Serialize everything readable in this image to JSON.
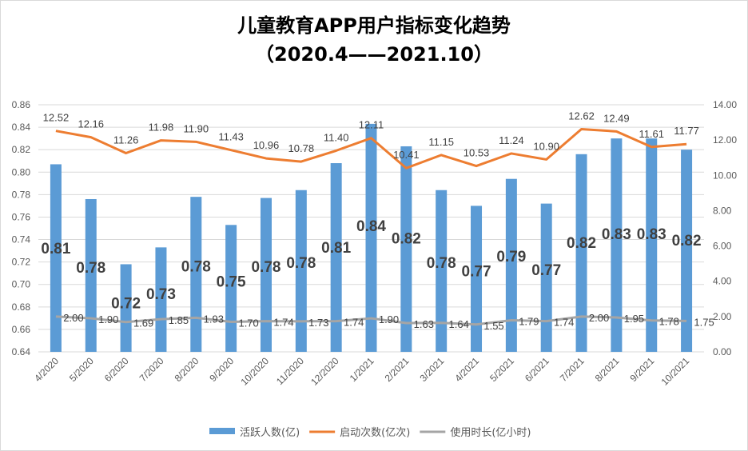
{
  "chart_data": {
    "type": "bar+line",
    "title": "儿童教育APP用户指标变化趋势",
    "subtitle": "（2020.4——2021.10）",
    "categories": [
      "4/2020",
      "5/2020",
      "6/2020",
      "7/2020",
      "8/2020",
      "9/2020",
      "10/2020",
      "11/2020",
      "12/2020",
      "1/2021",
      "2/2021",
      "3/2021",
      "4/2021",
      "5/2021",
      "6/2021",
      "7/2021",
      "8/2021",
      "9/2021",
      "10/2021"
    ],
    "series": [
      {
        "name": "活跃人数(亿)",
        "type": "bar",
        "axis": "left",
        "color": "#5B9BD5",
        "values": [
          0.807,
          0.776,
          0.718,
          0.733,
          0.778,
          0.753,
          0.777,
          0.784,
          0.808,
          0.843,
          0.823,
          0.784,
          0.77,
          0.794,
          0.772,
          0.816,
          0.83,
          0.83,
          0.82
        ],
        "labels": [
          "0.81",
          "0.78",
          "0.72",
          "0.73",
          "0.78",
          "0.75",
          "0.78",
          "0.78",
          "0.81",
          "0.84",
          "0.82",
          "0.78",
          "0.77",
          "0.79",
          "0.77",
          "0.82",
          "0.83",
          "0.83",
          "0.82"
        ]
      },
      {
        "name": "启动次数(亿次)",
        "type": "line",
        "axis": "right",
        "color": "#ED7D31",
        "values": [
          12.52,
          12.16,
          11.26,
          11.98,
          11.9,
          11.43,
          10.96,
          10.78,
          11.4,
          12.11,
          10.41,
          11.15,
          10.53,
          11.24,
          10.9,
          12.62,
          12.49,
          11.61,
          11.77
        ]
      },
      {
        "name": "使用时长(亿小时)",
        "type": "line",
        "axis": "right",
        "color": "#A5A5A5",
        "values": [
          2.0,
          1.9,
          1.69,
          1.85,
          1.93,
          1.7,
          1.74,
          1.73,
          1.74,
          1.9,
          1.63,
          1.64,
          1.55,
          1.79,
          1.74,
          2.0,
          1.95,
          1.78,
          1.75
        ]
      }
    ],
    "left_axis": {
      "ylim": [
        0.64,
        0.86
      ],
      "ticks": [
        "0.64",
        "0.66",
        "0.68",
        "0.70",
        "0.72",
        "0.74",
        "0.76",
        "0.78",
        "0.80",
        "0.82",
        "0.84",
        "0.86"
      ]
    },
    "right_axis": {
      "ylim": [
        0,
        14
      ],
      "ticks": [
        "0.00",
        "2.00",
        "4.00",
        "6.00",
        "8.00",
        "10.00",
        "12.00",
        "14.00"
      ]
    },
    "grid": true,
    "legend": "bottom"
  }
}
